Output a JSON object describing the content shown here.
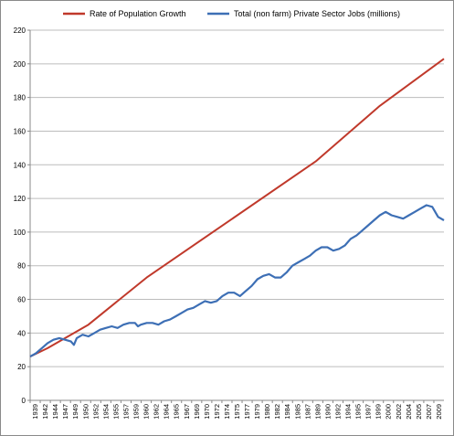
{
  "chart_data": {
    "type": "line",
    "title": "",
    "xlabel": "",
    "ylabel": "",
    "ylim": [
      0,
      220
    ],
    "yticks": [
      0,
      20,
      40,
      60,
      80,
      100,
      120,
      140,
      160,
      180,
      200,
      220
    ],
    "xlim": [
      1939,
      2010
    ],
    "xtick_labels": [
      "1939",
      "1942",
      "1944",
      "1947",
      "1949",
      "1950",
      "1952",
      "1954",
      "1955",
      "1957",
      "1959",
      "1960",
      "1962",
      "1964",
      "1965",
      "1967",
      "1969",
      "1970",
      "1972",
      "1974",
      "1975",
      "1977",
      "1979",
      "1980",
      "1982",
      "1984",
      "1985",
      "1987",
      "1989",
      "1990",
      "1992",
      "1994",
      "1995",
      "1997",
      "1999",
      "2000",
      "2002",
      "2004",
      "2005",
      "2007",
      "2009"
    ],
    "grid": "horizontal",
    "legend": "top",
    "series": [
      {
        "name": "Rate of Population Growth",
        "color": "#c0392b",
        "x": [
          1939,
          1942,
          1949,
          1959,
          1988,
          1999,
          2010
        ],
        "y": [
          26,
          31,
          45,
          73,
          142,
          175,
          203
        ]
      },
      {
        "name": "Total (non farm) Private Sector Jobs (millions)",
        "color": "#3d6fb5",
        "x": [
          1939,
          1940,
          1941,
          1942,
          1943,
          1944,
          1945,
          1946,
          1946.5,
          1947,
          1948,
          1949,
          1950,
          1951,
          1952,
          1953,
          1954,
          1955,
          1956,
          1957,
          1957.5,
          1958,
          1959,
          1960,
          1961,
          1962,
          1963,
          1964,
          1965,
          1966,
          1967,
          1968,
          1969,
          1970,
          1971,
          1972,
          1973,
          1974,
          1975,
          1976,
          1977,
          1978,
          1979,
          1980,
          1981,
          1982,
          1983,
          1984,
          1985,
          1986,
          1987,
          1988,
          1989,
          1990,
          1991,
          1992,
          1993,
          1994,
          1995,
          1996,
          1997,
          1998,
          1999,
          2000,
          2001,
          2002,
          2003,
          2004,
          2005,
          2006,
          2007,
          2008,
          2009,
          2010
        ],
        "y": [
          26,
          28,
          31,
          34,
          36,
          37,
          36,
          35,
          33,
          37,
          39,
          38,
          40,
          42,
          43,
          44,
          43,
          45,
          46,
          46,
          44,
          45,
          46,
          46,
          45,
          47,
          48,
          50,
          52,
          54,
          55,
          57,
          59,
          58,
          59,
          62,
          64,
          64,
          62,
          65,
          68,
          72,
          74,
          75,
          73,
          73,
          76,
          80,
          82,
          84,
          86,
          89,
          91,
          91,
          89,
          90,
          92,
          96,
          98,
          101,
          104,
          107,
          110,
          112,
          110,
          109,
          108,
          110,
          112,
          114,
          116,
          115,
          109,
          107
        ]
      }
    ]
  }
}
